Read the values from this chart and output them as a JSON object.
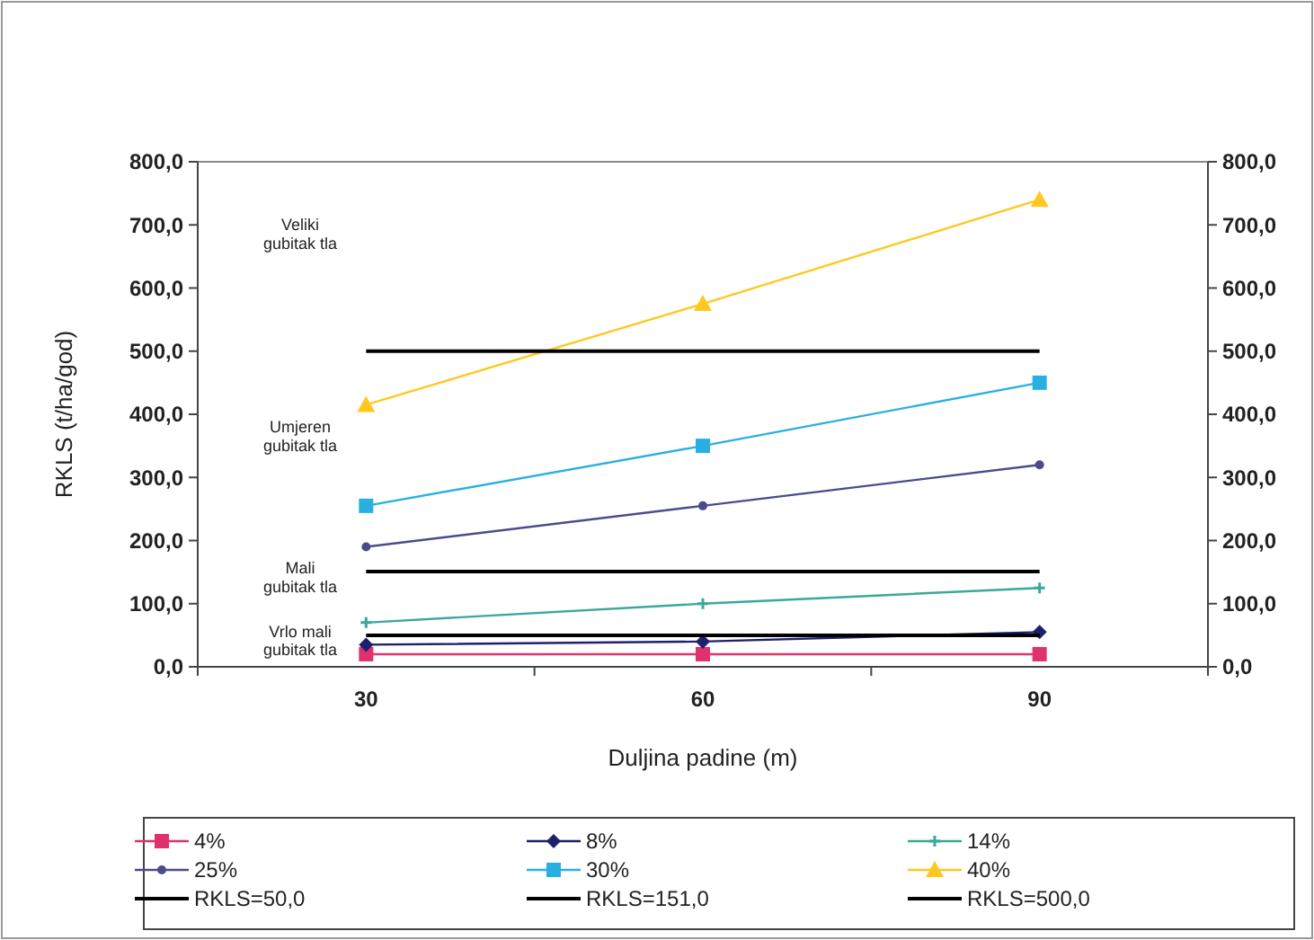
{
  "chart_data": {
    "type": "line",
    "xlabel": "Duljina padine (m)",
    "ylabel": "RKLS (t/ha/god)",
    "categories": [
      "30",
      "60",
      "90"
    ],
    "series": [
      {
        "name": "4%",
        "color": "#e0306e",
        "values": [
          20,
          20,
          20
        ],
        "marker": "square"
      },
      {
        "name": "8%",
        "color": "#1f1f6e",
        "values": [
          35,
          40,
          55
        ],
        "marker": "diamond"
      },
      {
        "name": "14%",
        "color": "#3aa89a",
        "values": [
          70,
          100,
          125
        ],
        "marker": "cross"
      },
      {
        "name": "25%",
        "color": "#4b4b8c",
        "values": [
          190,
          255,
          320
        ],
        "marker": "circle"
      },
      {
        "name": "30%",
        "color": "#2ab0e0",
        "values": [
          255,
          350,
          450
        ],
        "marker": "square"
      },
      {
        "name": "40%",
        "color": "#ffc820",
        "values": [
          415,
          575,
          740
        ],
        "marker": "triangle"
      },
      {
        "name": "RKLS=50,0",
        "color": "#000000",
        "values": [
          50,
          50,
          50
        ],
        "marker": "none"
      },
      {
        "name": "RKLS=151,0",
        "color": "#000000",
        "values": [
          151,
          151,
          151
        ],
        "marker": "none"
      },
      {
        "name": "RKLS=500,0",
        "color": "#000000",
        "values": [
          500,
          500,
          500
        ],
        "marker": "none"
      }
    ],
    "ylim": [
      0,
      800
    ],
    "yticks": [
      {
        "value": 0,
        "label": "0,0"
      },
      {
        "value": 100,
        "label": "100,0"
      },
      {
        "value": 200,
        "label": "200,0"
      },
      {
        "value": 300,
        "label": "300,0"
      },
      {
        "value": 400,
        "label": "400,0"
      },
      {
        "value": 500,
        "label": "500,0"
      },
      {
        "value": 600,
        "label": "600,0"
      },
      {
        "value": 700,
        "label": "700,0"
      },
      {
        "value": 800,
        "label": "800,0"
      }
    ],
    "y2lim": [
      0,
      800
    ],
    "y2ticks": [
      {
        "value": 0,
        "label": "0,0"
      },
      {
        "value": 100,
        "label": "100,0"
      },
      {
        "value": 200,
        "label": "200,0"
      },
      {
        "value": 300,
        "label": "300,0"
      },
      {
        "value": 400,
        "label": "400,0"
      },
      {
        "value": 500,
        "label": "500,0"
      },
      {
        "value": 600,
        "label": "600,0"
      },
      {
        "value": 700,
        "label": "700,0"
      },
      {
        "value": 800,
        "label": "800,0"
      }
    ],
    "annotations": [
      "Veliki gubitak tla",
      "Umjeren gubitak tla",
      "Mali gubitak tla",
      "Vrlo mali gubitak tla"
    ],
    "legend": "bottom",
    "grid": false
  }
}
